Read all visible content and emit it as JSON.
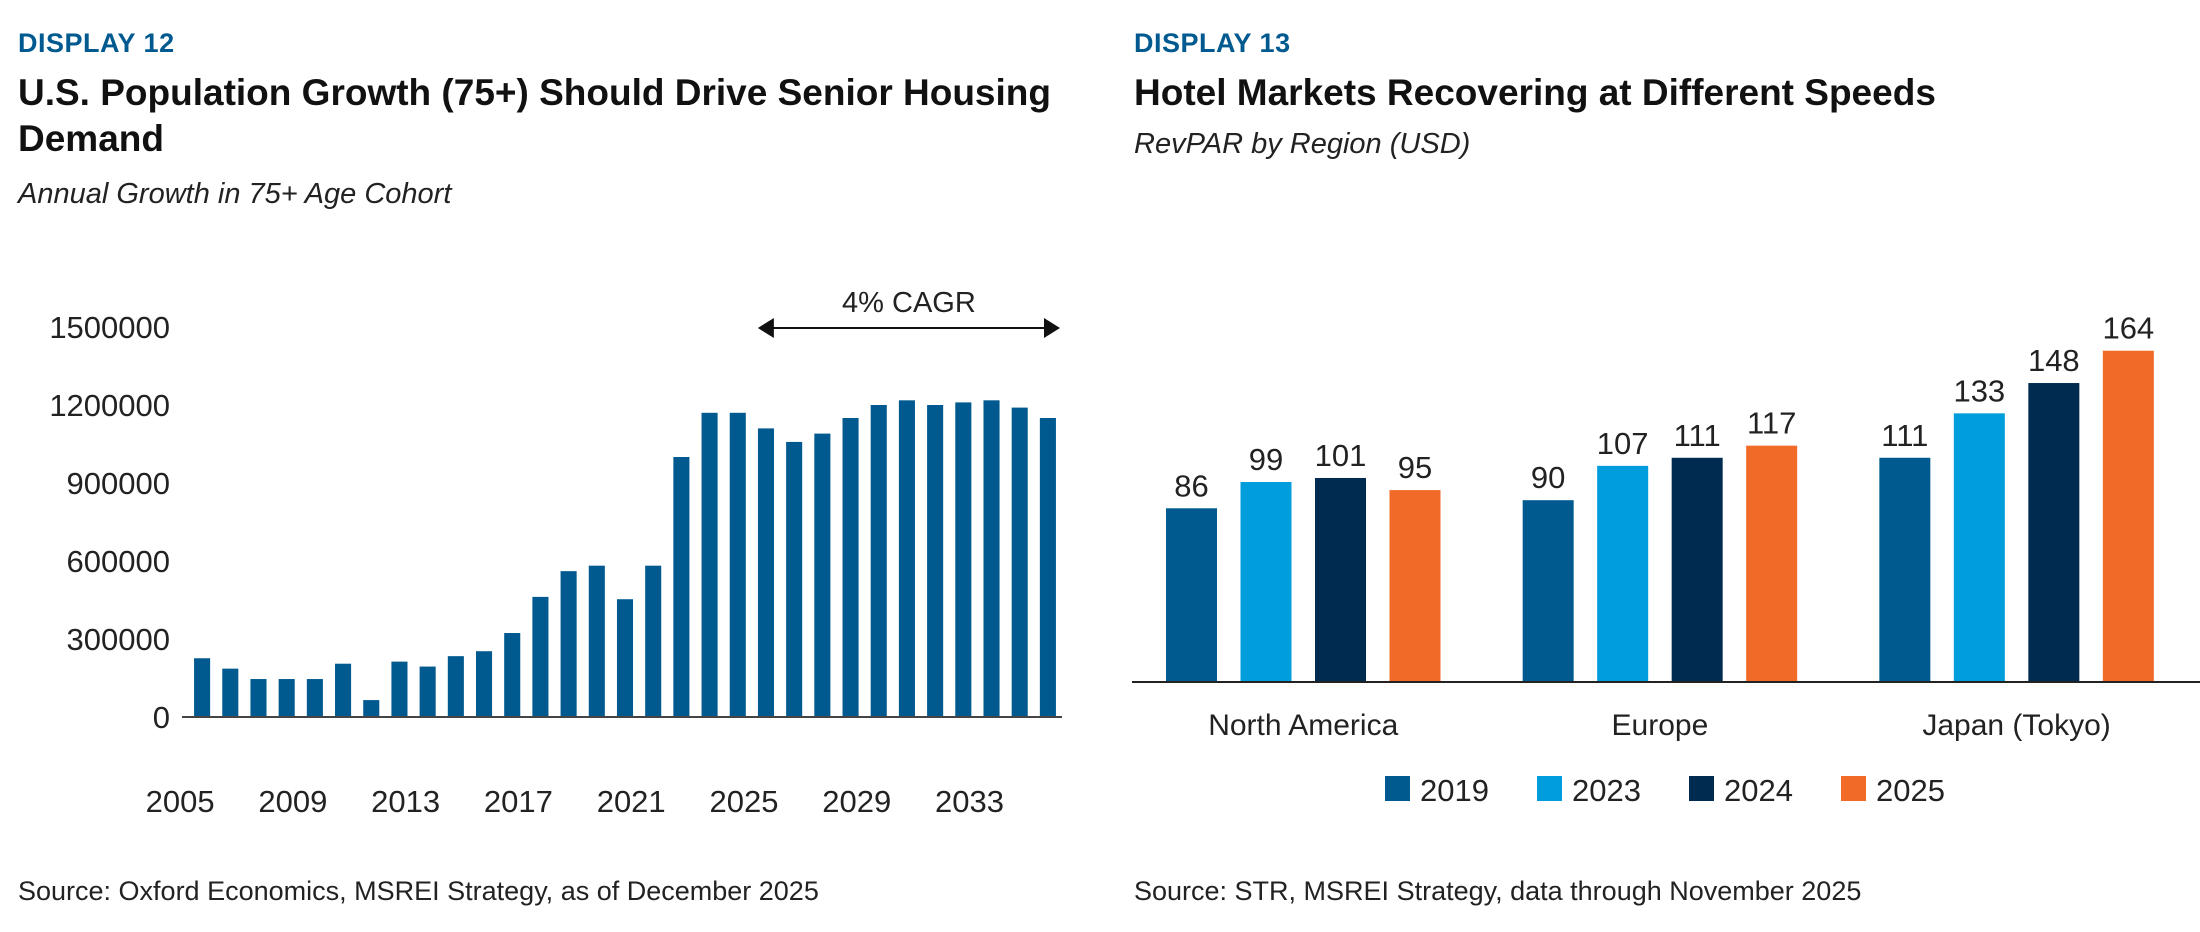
{
  "left": {
    "display": "DISPLAY 12",
    "title": "U.S. Population Growth (75+) Should Drive Senior Housing Demand",
    "subtitle": "Annual Growth in 75+ Age Cohort",
    "source": "Source: Oxford Economics, MSREI Strategy, as of December 2025"
  },
  "right": {
    "display": "DISPLAY 13",
    "title": "Hotel Markets Recovering at Different Speeds",
    "subtitle": "RevPAR by Region (USD)",
    "source": "Source: STR, MSREI Strategy, data through November 2025"
  },
  "chart_data": [
    {
      "type": "bar",
      "title": "U.S. Population Growth (75+) Should Drive Senior Housing Demand",
      "subtitle": "Annual Growth in 75+ Age Cohort",
      "x": [
        2005,
        2006,
        2007,
        2008,
        2009,
        2010,
        2011,
        2012,
        2013,
        2014,
        2015,
        2016,
        2017,
        2018,
        2019,
        2020,
        2021,
        2022,
        2023,
        2024,
        2025,
        2026,
        2027,
        2028,
        2029,
        2030,
        2031,
        2032,
        2033,
        2034,
        2035
      ],
      "values": [
        226000,
        186000,
        146000,
        146000,
        146000,
        205000,
        65000,
        213000,
        194000,
        234000,
        253000,
        323000,
        462000,
        561000,
        582000,
        453000,
        582000,
        1000000,
        1170000,
        1170000,
        1110000,
        1058000,
        1090000,
        1150000,
        1200000,
        1218000,
        1200000,
        1210000,
        1218000,
        1190000,
        1150000
      ],
      "xticks": [
        "2005",
        "2009",
        "2013",
        "2017",
        "2021",
        "2025",
        "2029",
        "2033"
      ],
      "yticks": [
        "0",
        "300000",
        "600000",
        "900000",
        "1200000",
        "1500000"
      ],
      "ylim": [
        0,
        1500000
      ],
      "annotation": {
        "text": "4% CAGR",
        "from": 2025,
        "to": 2035
      },
      "color": "#005a8f",
      "grid": false
    },
    {
      "type": "bar",
      "title": "Hotel Markets Recovering at Different Speeds",
      "subtitle": "RevPAR by Region (USD)",
      "categories": [
        "North America",
        "Europe",
        "Japan (Tokyo)"
      ],
      "series": [
        {
          "name": "2019",
          "values": [
            86,
            90,
            111
          ],
          "color": "#005a8f"
        },
        {
          "name": "2023",
          "values": [
            99,
            107,
            133
          ],
          "color": "#009ddc"
        },
        {
          "name": "2024",
          "values": [
            101,
            111,
            148
          ],
          "color": "#002b50"
        },
        {
          "name": "2025",
          "values": [
            95,
            117,
            164
          ],
          "color": "#f26a27"
        }
      ],
      "ylim": [
        0,
        180
      ],
      "legend": "bottom",
      "data_labels": true,
      "grid": false
    }
  ]
}
